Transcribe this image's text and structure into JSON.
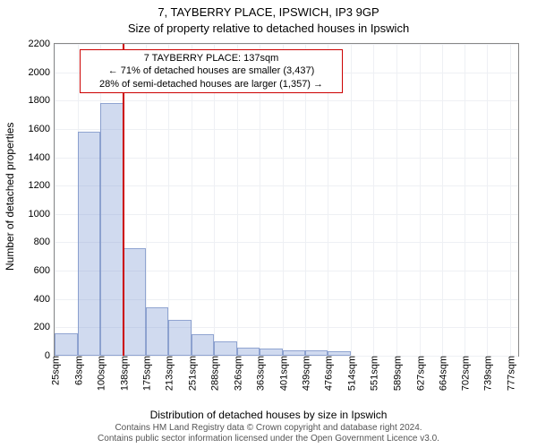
{
  "title_line1": "7, TAYBERRY PLACE, IPSWICH, IP3 9GP",
  "title_line2": "Size of property relative to detached houses in Ipswich",
  "y_axis_label": "Number of detached properties",
  "x_axis_label": "Distribution of detached houses by size in Ipswich",
  "footer_line1": "Contains HM Land Registry data © Crown copyright and database right 2024.",
  "footer_line2": "Contains public sector information licensed under the Open Government Licence v3.0.",
  "marker": {
    "box_line1": "7 TAYBERRY PLACE: 137sqm",
    "box_line2": "← 71% of detached houses are smaller (3,437)",
    "box_line3": "28% of semi-detached houses are larger (1,357) →",
    "value_sqm": 137,
    "line_color": "#cc0000",
    "box_border": "#cc0000",
    "box_bg": "#ffffff"
  },
  "chart": {
    "type": "histogram",
    "xlim": [
      25,
      790
    ],
    "ylim": [
      0,
      2200
    ],
    "y_ticks": [
      0,
      200,
      400,
      600,
      800,
      1000,
      1200,
      1400,
      1600,
      1800,
      2000,
      2200
    ],
    "x_ticks": [
      25,
      63,
      100,
      138,
      175,
      213,
      251,
      288,
      326,
      363,
      401,
      439,
      476,
      514,
      551,
      589,
      627,
      664,
      702,
      739,
      777
    ],
    "x_tick_suffix": "sqm",
    "bar_color": "rgba(120,150,210,0.35)",
    "bar_border": "rgba(80,110,180,0.5)",
    "grid_color": "#eef0f4",
    "background_color": "#ffffff",
    "axis_color": "#888888",
    "bars": [
      {
        "x_start": 25,
        "x_end": 63,
        "count": 160
      },
      {
        "x_start": 63,
        "x_end": 100,
        "count": 1580
      },
      {
        "x_start": 100,
        "x_end": 138,
        "count": 1780
      },
      {
        "x_start": 138,
        "x_end": 175,
        "count": 760
      },
      {
        "x_start": 175,
        "x_end": 213,
        "count": 340
      },
      {
        "x_start": 213,
        "x_end": 251,
        "count": 250
      },
      {
        "x_start": 251,
        "x_end": 288,
        "count": 150
      },
      {
        "x_start": 288,
        "x_end": 326,
        "count": 100
      },
      {
        "x_start": 326,
        "x_end": 363,
        "count": 60
      },
      {
        "x_start": 363,
        "x_end": 401,
        "count": 50
      },
      {
        "x_start": 401,
        "x_end": 439,
        "count": 40
      },
      {
        "x_start": 439,
        "x_end": 476,
        "count": 40
      },
      {
        "x_start": 476,
        "x_end": 514,
        "count": 30
      }
    ]
  }
}
